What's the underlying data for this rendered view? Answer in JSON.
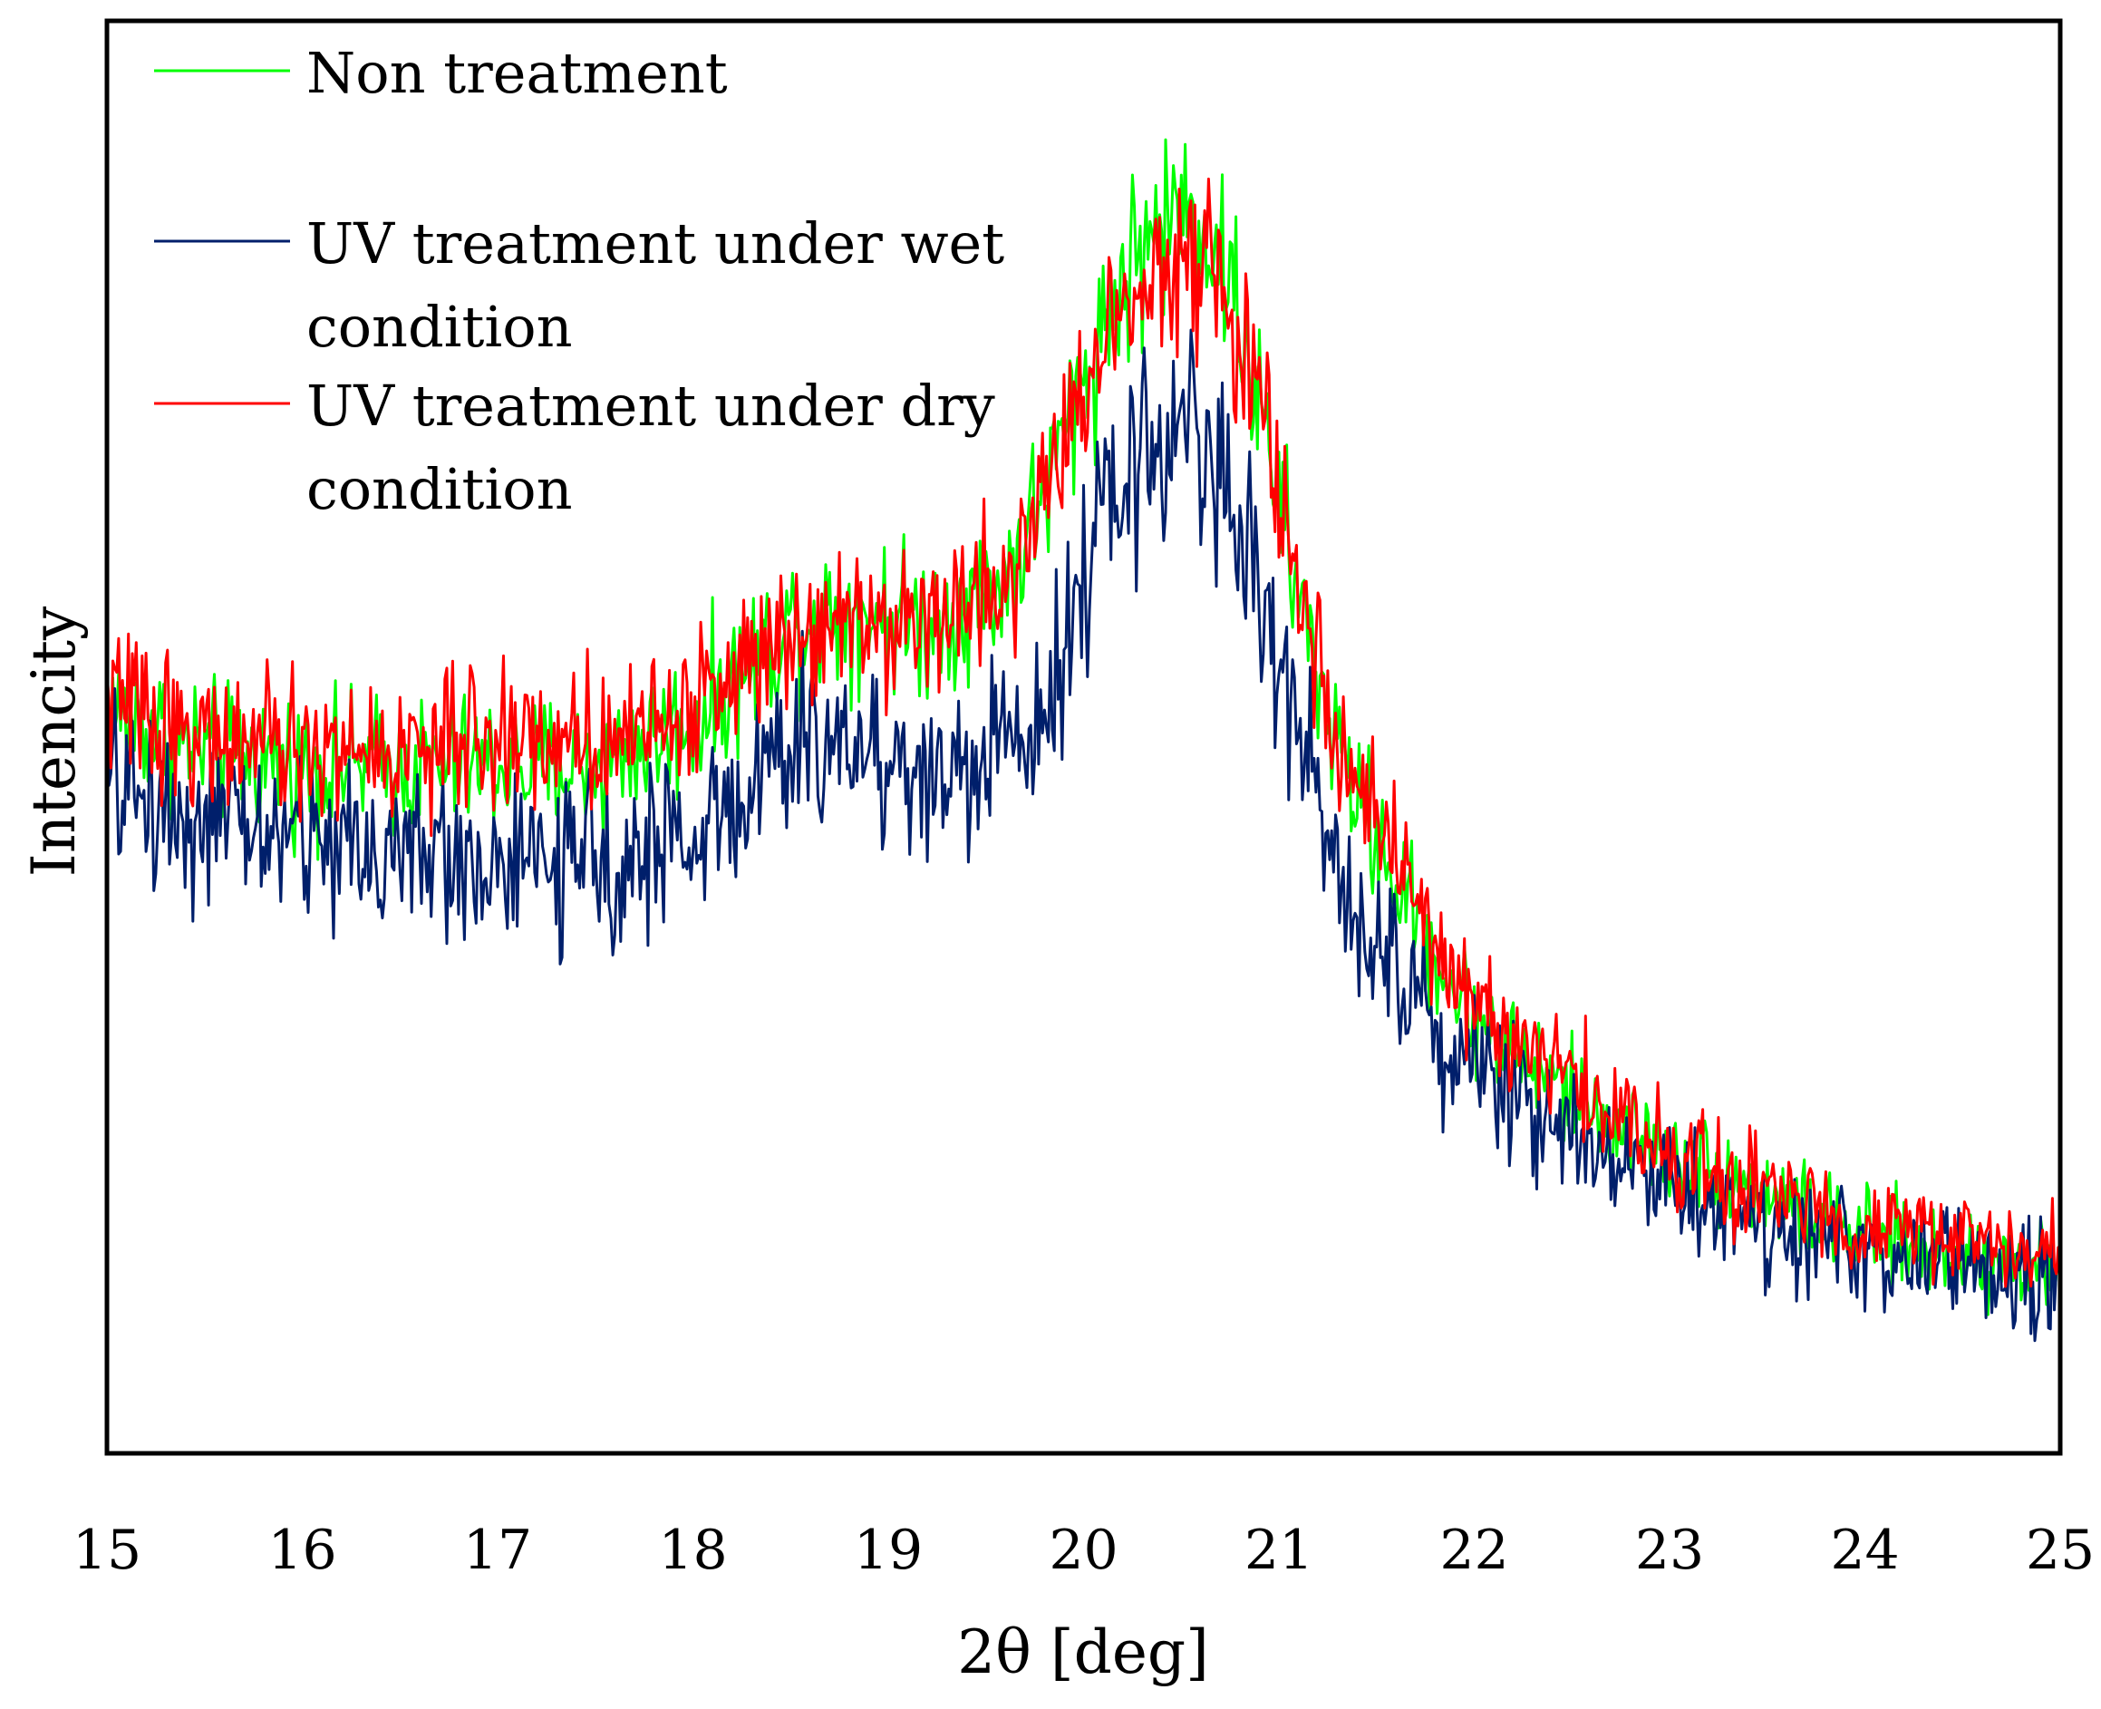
{
  "chart_data": {
    "type": "line",
    "title": "",
    "xlabel": "2θ [deg]",
    "ylabel": "Intencity",
    "xlim": [
      15,
      25
    ],
    "ylim": [
      0,
      100
    ],
    "x_ticks": [
      "15",
      "16",
      "17",
      "18",
      "19",
      "20",
      "21",
      "22",
      "23",
      "24",
      "25"
    ],
    "y_ticks_shown": false,
    "grid": false,
    "legend_position": "top-left",
    "series": [
      {
        "name": "Non treatment",
        "label_lines": [
          "Non treatment"
        ],
        "color": "#00ff00",
        "noise": 2.8,
        "points": [
          [
            15.0,
            52
          ],
          [
            15.5,
            49
          ],
          [
            16.0,
            48
          ],
          [
            16.5,
            48
          ],
          [
            17.0,
            48
          ],
          [
            17.5,
            48
          ],
          [
            18.0,
            51
          ],
          [
            18.5,
            58
          ],
          [
            18.8,
            59
          ],
          [
            19.2,
            58
          ],
          [
            19.6,
            61
          ],
          [
            19.8,
            67
          ],
          [
            20.0,
            75
          ],
          [
            20.2,
            82
          ],
          [
            20.35,
            85
          ],
          [
            20.5,
            87
          ],
          [
            20.6,
            86
          ],
          [
            20.75,
            82
          ],
          [
            20.9,
            73
          ],
          [
            21.1,
            60
          ],
          [
            21.3,
            49
          ],
          [
            21.6,
            40
          ],
          [
            21.9,
            32
          ],
          [
            22.2,
            28
          ],
          [
            22.6,
            24
          ],
          [
            23.0,
            21
          ],
          [
            23.5,
            18
          ],
          [
            24.0,
            15
          ],
          [
            24.5,
            14
          ],
          [
            25.0,
            13
          ]
        ]
      },
      {
        "name": "UV treatment under wet condition",
        "label_lines": [
          "UV treatment under wet",
          "condition"
        ],
        "color": "#001f6b",
        "noise": 3.6,
        "points": [
          [
            15.0,
            47
          ],
          [
            15.5,
            44
          ],
          [
            16.0,
            43
          ],
          [
            16.5,
            42
          ],
          [
            17.0,
            41
          ],
          [
            17.5,
            41
          ],
          [
            18.0,
            43
          ],
          [
            18.5,
            49
          ],
          [
            18.8,
            50
          ],
          [
            19.2,
            47
          ],
          [
            19.6,
            49
          ],
          [
            19.8,
            53
          ],
          [
            20.0,
            61
          ],
          [
            20.2,
            68
          ],
          [
            20.4,
            71
          ],
          [
            20.5,
            72
          ],
          [
            20.6,
            71
          ],
          [
            20.75,
            67
          ],
          [
            20.9,
            60
          ],
          [
            21.1,
            50
          ],
          [
            21.3,
            41
          ],
          [
            21.6,
            34
          ],
          [
            21.9,
            28
          ],
          [
            22.2,
            25
          ],
          [
            22.6,
            22
          ],
          [
            23.0,
            19
          ],
          [
            23.5,
            16
          ],
          [
            24.0,
            14
          ],
          [
            24.5,
            13
          ],
          [
            25.0,
            12
          ]
        ]
      },
      {
        "name": "UV treatment under dry condition",
        "label_lines": [
          "UV treatment under dry",
          "condition"
        ],
        "color": "#ff0000",
        "noise": 2.8,
        "points": [
          [
            15.0,
            53
          ],
          [
            15.5,
            50
          ],
          [
            16.0,
            49
          ],
          [
            16.5,
            49
          ],
          [
            17.0,
            50
          ],
          [
            17.5,
            50
          ],
          [
            18.0,
            52
          ],
          [
            18.5,
            58
          ],
          [
            18.8,
            59
          ],
          [
            19.2,
            58
          ],
          [
            19.6,
            61
          ],
          [
            19.8,
            67
          ],
          [
            20.0,
            74
          ],
          [
            20.2,
            81
          ],
          [
            20.35,
            83
          ],
          [
            20.5,
            84
          ],
          [
            20.6,
            83
          ],
          [
            20.75,
            80
          ],
          [
            20.9,
            73
          ],
          [
            21.1,
            61
          ],
          [
            21.3,
            50
          ],
          [
            21.6,
            41
          ],
          [
            21.9,
            33
          ],
          [
            22.2,
            29
          ],
          [
            22.6,
            25
          ],
          [
            23.0,
            21
          ],
          [
            23.5,
            18
          ],
          [
            24.0,
            16
          ],
          [
            24.5,
            15
          ],
          [
            25.0,
            14
          ]
        ]
      }
    ]
  }
}
